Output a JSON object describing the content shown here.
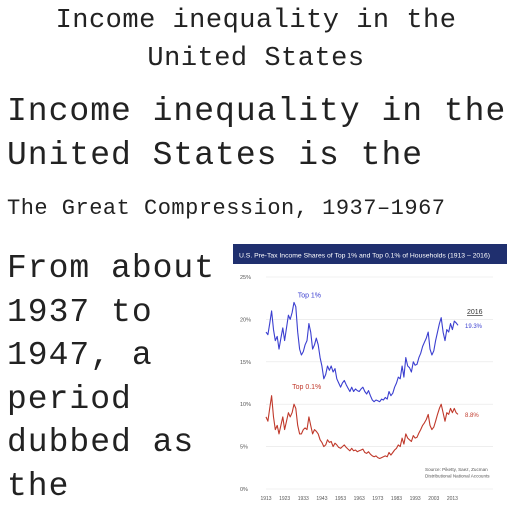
{
  "article": {
    "title": "Income inequality in the\nUnited States",
    "lead": "Income inequality in the\nUnited States is the",
    "section_heading": "The Great Compression, 1937–1967",
    "body": "From about\n1937 to\n1947, a\nperiod\ndubbed as\nthe"
  },
  "chart_data": {
    "type": "line",
    "title": "U.S. Pre-Tax Income Shares of Top 1% and Top 0.1% of Households (1913 – 2016)",
    "header_color": "#1f2f6e",
    "x_ticks": [
      "1913",
      "1923",
      "1933",
      "1943",
      "1953",
      "1963",
      "1973",
      "1983",
      "1993",
      "2003",
      "2013"
    ],
    "y_ticks": [
      "0%",
      "5%",
      "10%",
      "15%",
      "20%",
      "25%"
    ],
    "ylim": [
      0,
      25
    ],
    "xlim": [
      1913,
      2016
    ],
    "end_year_label": "2016",
    "source_note": "Source: Piketty, Saez, Zucman\nDistributional National Accounts",
    "series": [
      {
        "name": "Top 1%",
        "color": "#3b3fd0",
        "end_label": "19.3%",
        "x": [
          1913,
          1914,
          1915,
          1916,
          1917,
          1918,
          1919,
          1920,
          1921,
          1922,
          1923,
          1924,
          1925,
          1926,
          1927,
          1928,
          1929,
          1930,
          1931,
          1932,
          1933,
          1934,
          1935,
          1936,
          1937,
          1938,
          1939,
          1940,
          1941,
          1942,
          1943,
          1944,
          1945,
          1946,
          1947,
          1948,
          1949,
          1950,
          1951,
          1952,
          1953,
          1954,
          1955,
          1956,
          1957,
          1958,
          1959,
          1960,
          1961,
          1962,
          1963,
          1964,
          1965,
          1966,
          1967,
          1968,
          1969,
          1970,
          1971,
          1972,
          1973,
          1974,
          1975,
          1976,
          1977,
          1978,
          1979,
          1980,
          1981,
          1982,
          1983,
          1984,
          1985,
          1986,
          1987,
          1988,
          1989,
          1990,
          1991,
          1992,
          1993,
          1994,
          1995,
          1996,
          1997,
          1998,
          1999,
          2000,
          2001,
          2002,
          2003,
          2004,
          2005,
          2006,
          2007,
          2008,
          2009,
          2010,
          2011,
          2012,
          2013,
          2014,
          2015,
          2016
        ],
        "values": [
          18.5,
          18.2,
          19.5,
          21.0,
          18.8,
          17.5,
          18.0,
          16.5,
          17.8,
          19.0,
          17.5,
          19.0,
          20.5,
          20.0,
          20.8,
          22.0,
          21.5,
          18.5,
          16.5,
          15.8,
          16.2,
          17.0,
          17.5,
          19.5,
          18.5,
          16.5,
          17.0,
          17.8,
          17.0,
          15.5,
          14.5,
          13.0,
          13.5,
          14.5,
          14.0,
          14.5,
          13.8,
          14.2,
          13.0,
          12.5,
          12.0,
          12.5,
          12.8,
          12.3,
          11.9,
          11.5,
          12.0,
          11.5,
          11.8,
          11.6,
          11.5,
          11.8,
          12.0,
          11.5,
          11.2,
          11.6,
          11.0,
          10.5,
          10.3,
          10.5,
          10.4,
          10.3,
          10.6,
          10.5,
          10.8,
          10.6,
          11.5,
          11.0,
          11.3,
          12.0,
          12.5,
          13.2,
          13.0,
          14.5,
          13.2,
          15.5,
          14.5,
          14.3,
          13.8,
          15.0,
          14.6,
          14.7,
          15.5,
          16.0,
          16.8,
          17.3,
          17.8,
          18.5,
          16.5,
          15.8,
          16.3,
          17.5,
          18.5,
          19.5,
          20.2,
          18.5,
          17.5,
          18.8,
          18.5,
          19.5,
          18.8,
          19.8,
          19.6,
          19.3
        ]
      },
      {
        "name": "Top 0.1%",
        "color": "#c0392b",
        "end_label": "8.8%",
        "x": [
          1913,
          1914,
          1915,
          1916,
          1917,
          1918,
          1919,
          1920,
          1921,
          1922,
          1923,
          1924,
          1925,
          1926,
          1927,
          1928,
          1929,
          1930,
          1931,
          1932,
          1933,
          1934,
          1935,
          1936,
          1937,
          1938,
          1939,
          1940,
          1941,
          1942,
          1943,
          1944,
          1945,
          1946,
          1947,
          1948,
          1949,
          1950,
          1951,
          1952,
          1953,
          1954,
          1955,
          1956,
          1957,
          1958,
          1959,
          1960,
          1961,
          1962,
          1963,
          1964,
          1965,
          1966,
          1967,
          1968,
          1969,
          1970,
          1971,
          1972,
          1973,
          1974,
          1975,
          1976,
          1977,
          1978,
          1979,
          1980,
          1981,
          1982,
          1983,
          1984,
          1985,
          1986,
          1987,
          1988,
          1989,
          1990,
          1991,
          1992,
          1993,
          1994,
          1995,
          1996,
          1997,
          1998,
          1999,
          2000,
          2001,
          2002,
          2003,
          2004,
          2005,
          2006,
          2007,
          2008,
          2009,
          2010,
          2011,
          2012,
          2013,
          2014,
          2015,
          2016
        ],
        "values": [
          8.5,
          8.0,
          9.5,
          11.0,
          8.5,
          7.0,
          7.5,
          6.5,
          7.5,
          8.5,
          7.0,
          8.0,
          9.0,
          8.5,
          9.0,
          10.0,
          9.5,
          7.5,
          6.5,
          6.5,
          7.0,
          7.2,
          7.0,
          8.5,
          7.5,
          6.5,
          7.0,
          6.8,
          6.5,
          5.8,
          5.5,
          5.0,
          5.2,
          5.8,
          5.5,
          5.6,
          5.0,
          5.4,
          5.2,
          4.9,
          4.8,
          5.0,
          5.2,
          4.9,
          4.7,
          4.5,
          4.8,
          4.5,
          4.6,
          4.4,
          4.5,
          4.6,
          4.7,
          4.3,
          4.2,
          4.4,
          4.1,
          3.9,
          3.8,
          3.9,
          3.7,
          3.6,
          3.7,
          3.8,
          3.9,
          3.8,
          4.3,
          4.0,
          4.3,
          4.6,
          4.8,
          5.2,
          5.0,
          6.0,
          5.3,
          6.5,
          6.0,
          5.8,
          5.6,
          6.3,
          6.0,
          6.1,
          6.6,
          7.0,
          7.5,
          7.8,
          8.2,
          8.8,
          7.5,
          7.0,
          7.3,
          8.0,
          8.8,
          9.5,
          10.0,
          9.0,
          8.0,
          9.0,
          8.8,
          9.5,
          9.0,
          9.5,
          9.0,
          8.8
        ]
      }
    ],
    "grid": true,
    "legend": "inline labels"
  }
}
